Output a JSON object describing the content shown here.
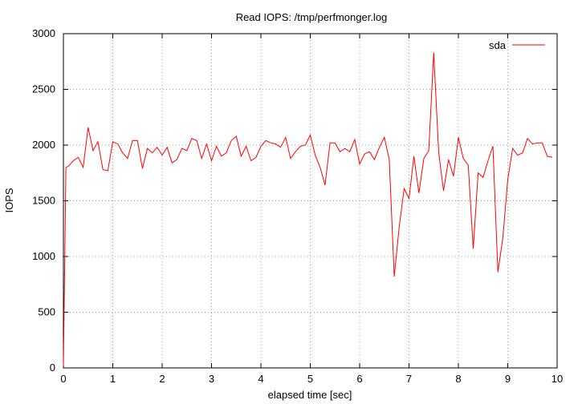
{
  "chart_data": {
    "type": "line",
    "title": "Read IOPS: /tmp/perfmonger.log",
    "xlabel": "elapsed time [sec]",
    "ylabel": "IOPS",
    "xlim": [
      0,
      10
    ],
    "ylim": [
      0,
      3000
    ],
    "xticks": [
      "0",
      "1",
      "2",
      "3",
      "4",
      "5",
      "6",
      "7",
      "8",
      "9",
      "10"
    ],
    "yticks": [
      "0",
      "500",
      "1000",
      "1500",
      "2000",
      "2500",
      "3000"
    ],
    "grid": true,
    "legend_position": "top-right",
    "series_color": "#ff0000",
    "series": [
      {
        "name": "sda",
        "x": [
          0.0,
          0.05,
          0.1,
          0.2,
          0.3,
          0.4,
          0.5,
          0.6,
          0.7,
          0.8,
          0.9,
          1.0,
          1.1,
          1.2,
          1.3,
          1.4,
          1.5,
          1.6,
          1.7,
          1.8,
          1.9,
          2.0,
          2.1,
          2.2,
          2.3,
          2.4,
          2.5,
          2.6,
          2.7,
          2.8,
          2.9,
          3.0,
          3.1,
          3.2,
          3.3,
          3.4,
          3.5,
          3.6,
          3.7,
          3.8,
          3.9,
          4.0,
          4.1,
          4.2,
          4.3,
          4.4,
          4.5,
          4.6,
          4.7,
          4.8,
          4.9,
          5.0,
          5.1,
          5.2,
          5.3,
          5.4,
          5.5,
          5.6,
          5.7,
          5.8,
          5.9,
          6.0,
          6.1,
          6.2,
          6.3,
          6.4,
          6.5,
          6.6,
          6.7,
          6.8,
          6.9,
          7.0,
          7.1,
          7.2,
          7.3,
          7.4,
          7.5,
          7.6,
          7.7,
          7.8,
          7.9,
          8.0,
          8.1,
          8.2,
          8.3,
          8.4,
          8.5,
          8.6,
          8.7,
          8.8,
          8.9,
          9.0,
          9.1,
          9.2,
          9.3,
          9.4,
          9.5,
          9.6,
          9.7,
          9.8,
          9.9
        ],
        "values": [
          20,
          1800,
          1810,
          1860,
          1890,
          1800,
          2160,
          1950,
          2030,
          1780,
          1770,
          2030,
          2010,
          1930,
          1880,
          2040,
          2040,
          1790,
          1970,
          1930,
          1980,
          1910,
          1980,
          1840,
          1870,
          1970,
          1950,
          2060,
          2040,
          1880,
          2010,
          1860,
          1990,
          1900,
          1930,
          2040,
          2080,
          1900,
          1990,
          1860,
          1890,
          1990,
          2040,
          2020,
          2010,
          1980,
          2070,
          1880,
          1940,
          1990,
          2000,
          2090,
          1910,
          1800,
          1640,
          2020,
          2020,
          1940,
          1970,
          1940,
          2050,
          1830,
          1920,
          1940,
          1870,
          1980,
          2070,
          1870,
          820,
          1260,
          1610,
          1520,
          1900,
          1570,
          1880,
          1950,
          2830,
          1940,
          1590,
          1870,
          1720,
          2070,
          1880,
          1820,
          1070,
          1750,
          1710,
          1860,
          1990,
          860,
          1170,
          1690,
          1970,
          1910,
          1930,
          2060,
          2010,
          2020,
          2020,
          1900,
          1890
        ]
      }
    ]
  }
}
